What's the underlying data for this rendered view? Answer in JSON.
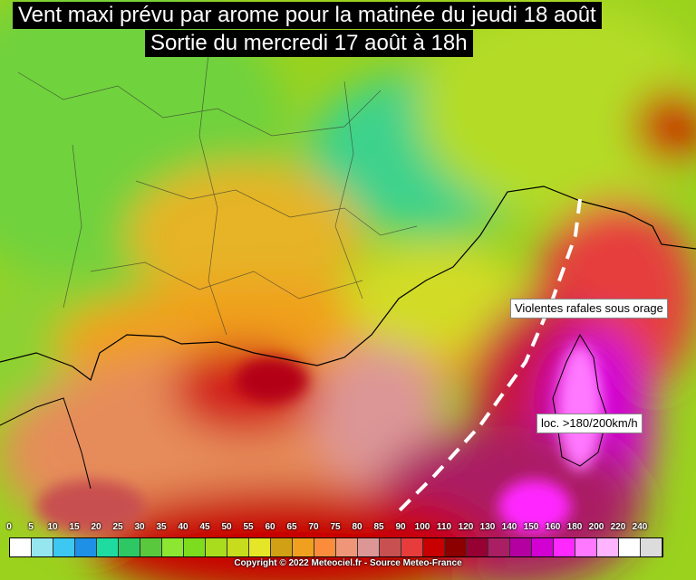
{
  "title": {
    "line1": "Vent maxi prévu par arome pour la matinée du jeudi 18 août",
    "line2": "Sortie du mercredi 17 août à 18h"
  },
  "annotations": [
    {
      "text": "Violentes rafales sous orage"
    },
    {
      "text": "loc. >180/200km/h"
    }
  ],
  "legend": {
    "labels": [
      0,
      5,
      10,
      15,
      20,
      25,
      30,
      35,
      40,
      45,
      50,
      55,
      60,
      65,
      70,
      75,
      80,
      85,
      90,
      100,
      110,
      120,
      130,
      140,
      150,
      160,
      180,
      200,
      220,
      240
    ],
    "colors": [
      "#ffffff",
      "#96e6f0",
      "#3cc8f0",
      "#1e90e6",
      "#1edca0",
      "#2dc864",
      "#5ac83c",
      "#8ce632",
      "#7ddc1e",
      "#aadc1e",
      "#c8dc1e",
      "#e6e628",
      "#d2a014",
      "#f0a01e",
      "#fa8c3c",
      "#f09678",
      "#dc9696",
      "#c85050",
      "#e63c3c",
      "#c80000",
      "#8c0000",
      "#960032",
      "#aa1e64",
      "#b400a0",
      "#d200d2",
      "#ff28ff",
      "#ff78ff",
      "#ffb4ff",
      "#ffffff",
      "#dcdcdc"
    ]
  },
  "copyright": "Copyright © 2022 Meteociel.fr - Source Meteo-France"
}
